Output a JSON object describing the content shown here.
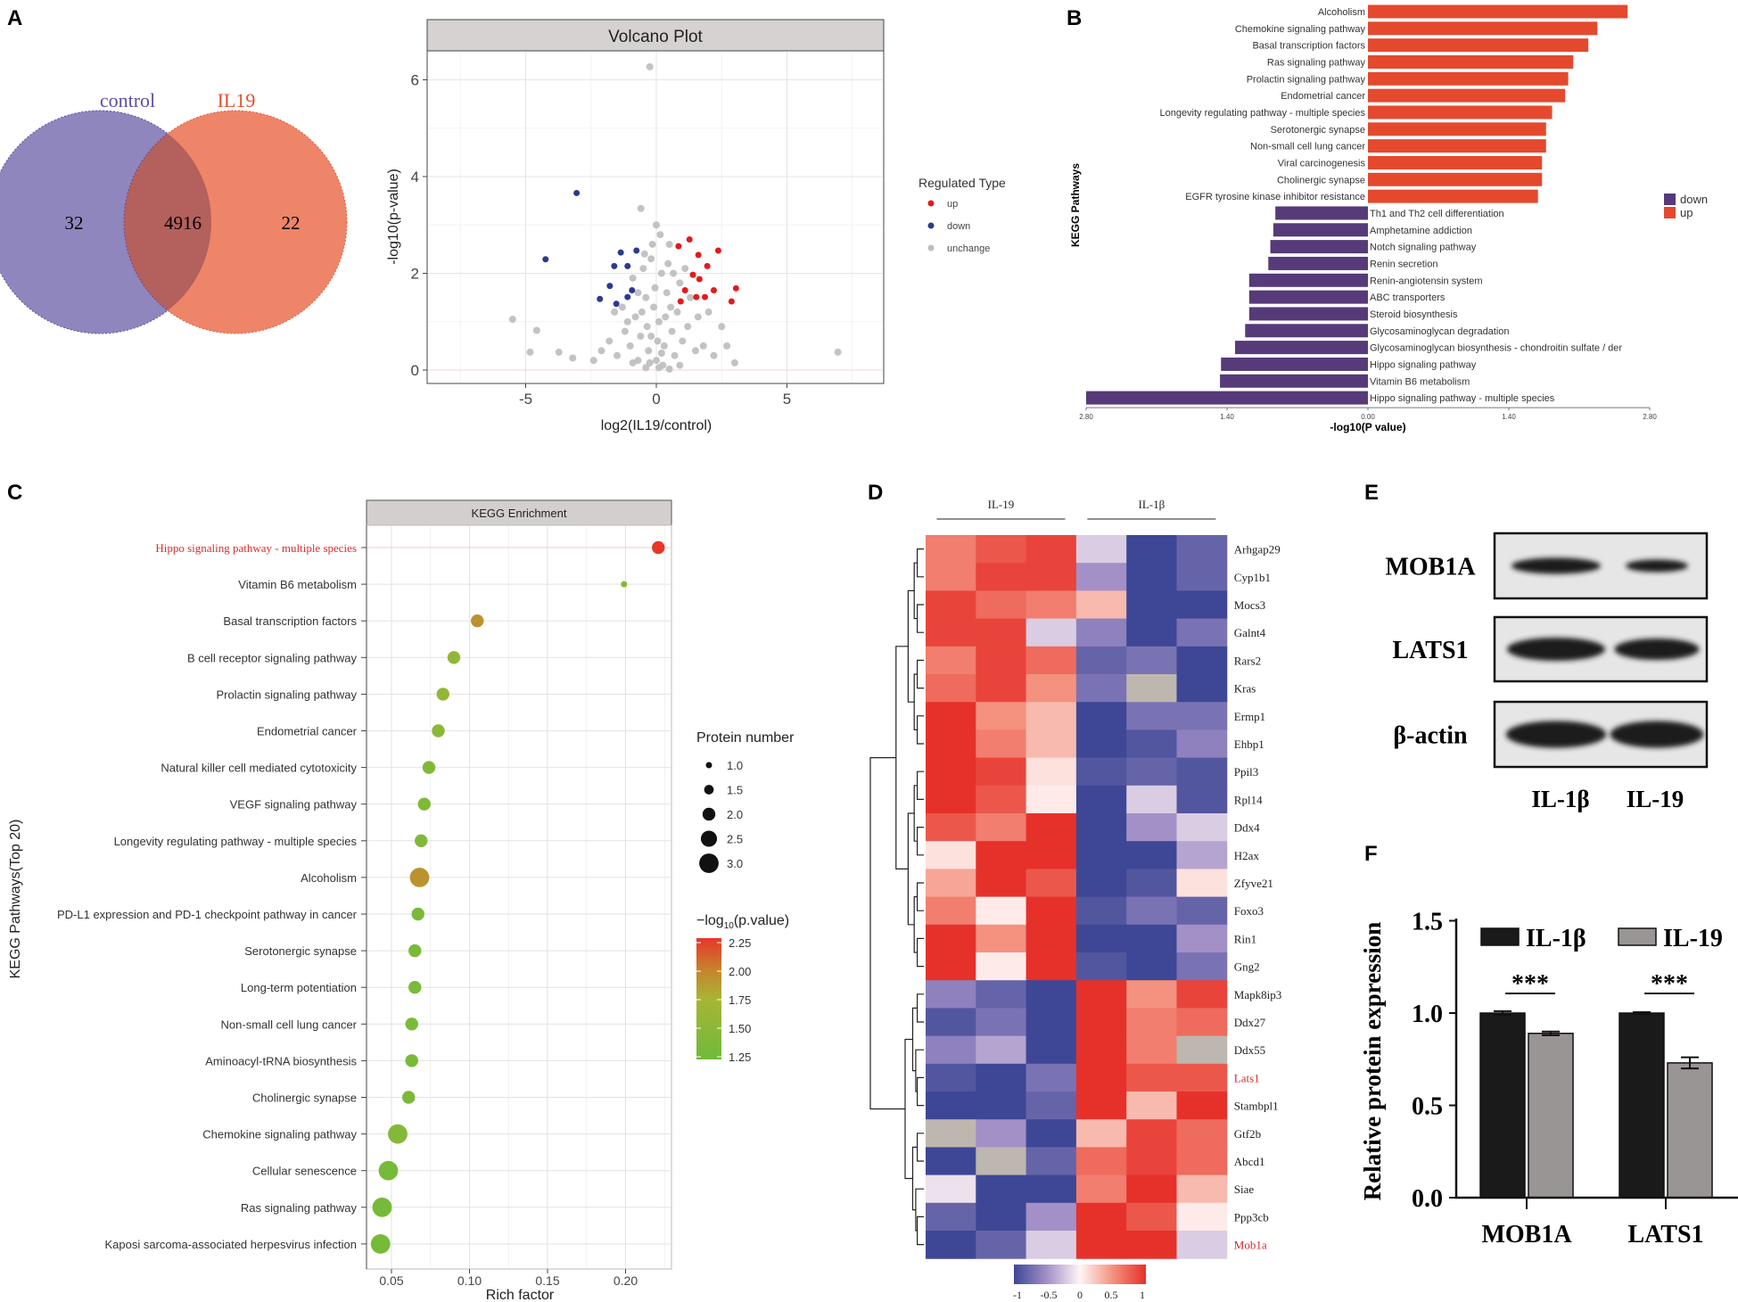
{
  "panel_labels": {
    "a": "A",
    "b": "B",
    "c": "C",
    "d": "D",
    "e": "E",
    "f": "F"
  },
  "chart_data": [
    {
      "type": "venn",
      "sets": [
        {
          "name": "control",
          "only": "32",
          "color": "#8f86bd"
        },
        {
          "name": "IL19",
          "only": "22",
          "color": "#ee8568"
        }
      ],
      "intersection": "4916",
      "overlap_color": "#b4605c"
    },
    {
      "type": "scatter",
      "title": "Volcano Plot",
      "xlabel": "log2(IL19/control)",
      "ylabel": "-log10(p-value)",
      "xticks": [
        "-5",
        "0",
        "5"
      ],
      "yticks": [
        "0",
        "2",
        "4",
        "6"
      ],
      "xlim": [
        -8.8,
        8.8
      ],
      "ylim": [
        -0.3,
        6.6
      ],
      "legend": {
        "title": "Regulated Type",
        "entries": [
          "up",
          "down",
          "unchange"
        ]
      },
      "series": [
        {
          "name": "unchange",
          "color": "#bdbdbd",
          "points": [
            [
              -0.25,
              6.27
            ],
            [
              -0.59,
              3.34
            ],
            [
              -5.5,
              1.05
            ],
            [
              6.95,
              0.37
            ],
            [
              -4.58,
              0.82
            ],
            [
              -4.83,
              0.37
            ],
            [
              -3.73,
              0.37
            ],
            [
              0,
              0.2
            ],
            [
              0.3,
              0.5
            ],
            [
              -0.3,
              0.4
            ],
            [
              0.6,
              0.8
            ],
            [
              -0.6,
              0.7
            ],
            [
              0.1,
              1.0
            ],
            [
              -0.1,
              1.3
            ],
            [
              0.4,
              1.6
            ],
            [
              -0.4,
              1.5
            ],
            [
              0.2,
              2.0
            ],
            [
              -0.2,
              2.3
            ],
            [
              0.5,
              2.6
            ],
            [
              -0.5,
              2.1
            ],
            [
              0.8,
              1.2
            ],
            [
              -0.8,
              1.1
            ],
            [
              1.0,
              0.6
            ],
            [
              -1.0,
              0.5
            ],
            [
              1.2,
              0.9
            ],
            [
              -1.2,
              0.8
            ],
            [
              1.5,
              0.4
            ],
            [
              -1.5,
              0.3
            ],
            [
              0.7,
              0.3
            ],
            [
              -0.7,
              0.2
            ],
            [
              0.9,
              1.8
            ],
            [
              -0.9,
              1.9
            ],
            [
              0.15,
              2.8
            ],
            [
              0.0,
              3.0
            ],
            [
              -0.15,
              2.6
            ],
            [
              0.35,
              1.1
            ],
            [
              -0.35,
              0.9
            ],
            [
              1.8,
              0.5
            ],
            [
              -1.8,
              0.6
            ],
            [
              2.2,
              0.3
            ],
            [
              -2.1,
              0.4
            ],
            [
              2.5,
              0.9
            ],
            [
              0.05,
              0.6
            ],
            [
              -0.05,
              1.7
            ],
            [
              0.25,
              0.1
            ],
            [
              -0.25,
              0.15
            ],
            [
              0.55,
              1.3
            ],
            [
              -0.55,
              1.2
            ],
            [
              1.3,
              1.5
            ],
            [
              -1.3,
              1.3
            ],
            [
              0.45,
              2.2
            ],
            [
              -0.45,
              2.4
            ],
            [
              0.65,
              2.0
            ],
            [
              -0.7,
              1.6
            ],
            [
              1.1,
              2.1
            ],
            [
              -1.1,
              1.0
            ],
            [
              0.9,
              0.1
            ],
            [
              -0.9,
              0.15
            ],
            [
              1.6,
              1.1
            ],
            [
              -1.6,
              1.2
            ],
            [
              0.2,
              0.35
            ],
            [
              -0.2,
              0.7
            ],
            [
              0.1,
              0.05
            ],
            [
              -0.4,
              0.05
            ],
            [
              0.5,
              0.02
            ],
            [
              2.0,
              1.2
            ],
            [
              -2.4,
              0.2
            ],
            [
              3.0,
              0.15
            ],
            [
              -3.2,
              0.25
            ],
            [
              2.7,
              0.5
            ]
          ]
        },
        {
          "name": "up",
          "color": "#e41a1c",
          "points": [
            [
              0.85,
              2.56
            ],
            [
              1.27,
              2.7
            ],
            [
              1.61,
              2.38
            ],
            [
              2.37,
              2.47
            ],
            [
              1.95,
              2.15
            ],
            [
              1.4,
              1.97
            ],
            [
              1.1,
              1.65
            ],
            [
              1.53,
              1.51
            ],
            [
              1.86,
              1.51
            ],
            [
              2.2,
              1.65
            ],
            [
              2.88,
              1.42
            ],
            [
              3.05,
              1.69
            ],
            [
              0.93,
              1.42
            ],
            [
              1.65,
              1.88
            ]
          ]
        },
        {
          "name": "down",
          "color": "#2b3a8f",
          "points": [
            [
              -3.05,
              3.66
            ],
            [
              -4.24,
              2.29
            ],
            [
              -1.61,
              2.15
            ],
            [
              -1.1,
              2.15
            ],
            [
              -0.76,
              2.47
            ],
            [
              -1.36,
              2.43
            ],
            [
              -0.93,
              1.65
            ],
            [
              -1.53,
              1.37
            ],
            [
              -2.16,
              1.47
            ],
            [
              -1.1,
              1.51
            ],
            [
              -1.78,
              1.74
            ]
          ]
        }
      ]
    },
    {
      "type": "bar",
      "orientation": "horizontal-diverging",
      "ylabel": "KEGG Pathways",
      "xlabel": "-log10(P value)",
      "xticks": [
        "2.80",
        "1.40",
        "0.00",
        "1.40",
        "2.80"
      ],
      "xlim": [
        0,
        2.8
      ],
      "legend": [
        {
          "name": "down",
          "color": "#563a79"
        },
        {
          "name": "up",
          "color": "#e4492e"
        }
      ],
      "items": [
        {
          "name": "Alcoholism",
          "dir": "up",
          "value": 2.58
        },
        {
          "name": "Chemokine signaling pathway",
          "dir": "up",
          "value": 2.28
        },
        {
          "name": "Basal transcription factors",
          "dir": "up",
          "value": 2.19
        },
        {
          "name": "Ras signaling pathway",
          "dir": "up",
          "value": 2.04
        },
        {
          "name": "Prolactin signaling pathway",
          "dir": "up",
          "value": 1.99
        },
        {
          "name": "Endometrial cancer",
          "dir": "up",
          "value": 1.96
        },
        {
          "name": "Longevity regulating pathway - multiple species",
          "dir": "up",
          "value": 1.83
        },
        {
          "name": "Serotonergic synapse",
          "dir": "up",
          "value": 1.77
        },
        {
          "name": "Non-small cell lung cancer",
          "dir": "up",
          "value": 1.77
        },
        {
          "name": "Viral carcinogenesis",
          "dir": "up",
          "value": 1.73
        },
        {
          "name": "Cholinergic synapse",
          "dir": "up",
          "value": 1.73
        },
        {
          "name": "EGFR tyrosine kinase inhibitor resistance",
          "dir": "up",
          "value": 1.69
        },
        {
          "name": "Th1 and Th2 cell differentiation",
          "dir": "down",
          "value": 0.92
        },
        {
          "name": "Amphetamine addiction",
          "dir": "down",
          "value": 0.94
        },
        {
          "name": "Notch signaling pathway",
          "dir": "down",
          "value": 0.97
        },
        {
          "name": "Renin secretion",
          "dir": "down",
          "value": 0.99
        },
        {
          "name": "Renin-angiotensin system",
          "dir": "down",
          "value": 1.18
        },
        {
          "name": "ABC transporters",
          "dir": "down",
          "value": 1.18
        },
        {
          "name": "Steroid biosynthesis",
          "dir": "down",
          "value": 1.18
        },
        {
          "name": "Glycosaminoglycan degradation",
          "dir": "down",
          "value": 1.22
        },
        {
          "name": "Glycosaminoglycan biosynthesis - chondroitin sulfate / der",
          "dir": "down",
          "value": 1.32
        },
        {
          "name": "Hippo signaling pathway",
          "dir": "down",
          "value": 1.46
        },
        {
          "name": "Vitamin B6 metabolism",
          "dir": "down",
          "value": 1.47
        },
        {
          "name": "Hippo signaling pathway - multiple species",
          "dir": "down",
          "value": 2.8
        }
      ]
    },
    {
      "type": "scatter",
      "subtype": "bubble",
      "title": "KEGG Enrichment",
      "xlabel": "Rich factor",
      "ylabel": "KEGG Pathways(Top 20)",
      "xticks": [
        "0.05",
        "0.10",
        "0.15",
        "0.20"
      ],
      "xlim": [
        0.034,
        0.23
      ],
      "size_legend": {
        "title": "Protein number",
        "values": [
          "1.0",
          "1.5",
          "2.0",
          "2.5",
          "3.0"
        ]
      },
      "color_legend": {
        "title_main": "−log",
        "title_sub": "10",
        "title_tail": "(p.value)",
        "values": [
          "2.25",
          "2.00",
          "1.75",
          "1.50",
          "1.25"
        ]
      },
      "highlight_color": "#e02b2b",
      "items": [
        {
          "name": "Hippo signaling pathway - multiple species",
          "rich": 0.221,
          "count": 2,
          "logp": 2.3,
          "highlight": true
        },
        {
          "name": "Vitamin B6 metabolism",
          "rich": 0.199,
          "count": 1,
          "logp": 1.47
        },
        {
          "name": "Basal transcription factors",
          "rich": 0.105,
          "count": 2,
          "logp": 1.95
        },
        {
          "name": "B cell receptor signaling pathway",
          "rich": 0.09,
          "count": 2,
          "logp": 1.55
        },
        {
          "name": "Prolactin signaling pathway",
          "rich": 0.083,
          "count": 2,
          "logp": 1.55
        },
        {
          "name": "Endometrial cancer",
          "rich": 0.08,
          "count": 2,
          "logp": 1.5
        },
        {
          "name": "Natural killer cell mediated cytotoxicity",
          "rich": 0.074,
          "count": 2,
          "logp": 1.4
        },
        {
          "name": "VEGF signaling pathway",
          "rich": 0.071,
          "count": 2,
          "logp": 1.4
        },
        {
          "name": "Longevity regulating pathway - multiple species",
          "rich": 0.069,
          "count": 2,
          "logp": 1.4
        },
        {
          "name": "Alcoholism",
          "rich": 0.068,
          "count": 3,
          "logp": 1.95
        },
        {
          "name": "PD-L1 expression and PD-1 checkpoint pathway in cancer",
          "rich": 0.067,
          "count": 2,
          "logp": 1.35
        },
        {
          "name": "Serotonergic synapse",
          "rich": 0.065,
          "count": 2,
          "logp": 1.35
        },
        {
          "name": "Long-term potentiation",
          "rich": 0.065,
          "count": 2,
          "logp": 1.35
        },
        {
          "name": "Non-small cell lung cancer",
          "rich": 0.063,
          "count": 2,
          "logp": 1.35
        },
        {
          "name": "Aminoacyl-tRNA biosynthesis",
          "rich": 0.063,
          "count": 2,
          "logp": 1.35
        },
        {
          "name": "Cholinergic synapse",
          "rich": 0.061,
          "count": 2,
          "logp": 1.35
        },
        {
          "name": "Chemokine signaling pathway",
          "rich": 0.054,
          "count": 3,
          "logp": 1.45
        },
        {
          "name": "Cellular senescence",
          "rich": 0.048,
          "count": 3,
          "logp": 1.3
        },
        {
          "name": "Ras signaling pathway",
          "rich": 0.044,
          "count": 3,
          "logp": 1.3
        },
        {
          "name": "Kaposi sarcoma-associated herpesvirus infection",
          "rich": 0.043,
          "count": 3,
          "logp": 1.3
        }
      ]
    },
    {
      "type": "heatmap",
      "groups": [
        "IL-19",
        "IL-1β"
      ],
      "colorbar_ticks": [
        "-1",
        "-0.5",
        "0",
        "0.5",
        "1"
      ],
      "highlight_rows": [
        "Lats1",
        "Mob1a"
      ],
      "highlight_color": "#d42a2a",
      "rows": [
        "Arhgap29",
        "Cyp1b1",
        "Mocs3",
        "Galnt4",
        "Rars2",
        "Kras",
        "Ermp1",
        "Ehbp1",
        "Ppil3",
        "Rpl14",
        "Ddx4",
        "H2ax",
        "Zfyve21",
        "Foxo3",
        "Rin1",
        "Gng2",
        "Mapk8ip3",
        "Ddx27",
        "Ddx55",
        "Lats1",
        "Stambpl1",
        "Gtf2b",
        "Abcd1",
        "Siae",
        "Ppp3cb",
        "Mob1a"
      ],
      "values": [
        [
          0.6,
          0.8,
          0.9,
          -0.2,
          -1,
          -0.8
        ],
        [
          0.6,
          0.9,
          0.9,
          -0.5,
          -1,
          -0.8
        ],
        [
          0.9,
          0.7,
          0.6,
          0.3,
          -1,
          -1
        ],
        [
          0.9,
          0.9,
          -0.2,
          -0.6,
          -1,
          -0.7
        ],
        [
          0.6,
          0.9,
          0.7,
          -0.8,
          -0.7,
          -1
        ],
        [
          0.7,
          0.9,
          0.5,
          -0.7,
          null,
          -1
        ],
        [
          1,
          0.5,
          0.3,
          -1,
          -0.7,
          -0.7
        ],
        [
          1,
          0.6,
          0.3,
          -1,
          -0.9,
          -0.6
        ],
        [
          1,
          0.9,
          0.1,
          -0.9,
          -0.8,
          -0.9
        ],
        [
          1,
          0.8,
          0.05,
          -1,
          -0.2,
          -0.9
        ],
        [
          0.8,
          0.6,
          1,
          -1,
          -0.5,
          -0.2
        ],
        [
          0.1,
          1,
          1,
          -1,
          -1,
          -0.4
        ],
        [
          0.4,
          1,
          0.8,
          -1,
          -0.9,
          0.1
        ],
        [
          0.6,
          0.05,
          1,
          -0.9,
          -0.7,
          -0.8
        ],
        [
          1,
          0.5,
          1,
          -1,
          -1,
          -0.5
        ],
        [
          1,
          0.05,
          1,
          -0.9,
          -1,
          -0.7
        ],
        [
          -0.6,
          -0.8,
          -1,
          1,
          0.5,
          0.9
        ],
        [
          -0.9,
          -0.7,
          -1,
          1,
          0.6,
          0.7
        ],
        [
          -0.6,
          -0.4,
          -1,
          1,
          0.6,
          null
        ],
        [
          -0.9,
          -1,
          -0.7,
          1,
          0.8,
          0.8
        ],
        [
          -1,
          -1,
          -0.8,
          1,
          0.3,
          1
        ],
        [
          null,
          -0.5,
          -1,
          0.3,
          0.9,
          0.7
        ],
        [
          -1,
          null,
          -0.8,
          0.7,
          0.9,
          0.7
        ],
        [
          -0.1,
          -1,
          -1,
          0.6,
          1,
          0.3
        ],
        [
          -0.8,
          -1,
          -0.5,
          1,
          0.8,
          0.05
        ],
        [
          -1,
          -0.8,
          -0.2,
          1,
          1,
          -0.2
        ]
      ]
    },
    {
      "type": "western-blot",
      "proteins": [
        "MOB1A",
        "LATS1",
        "β-actin"
      ],
      "lanes": [
        "IL-1β",
        "IL-19"
      ]
    },
    {
      "type": "bar",
      "ylabel": "Relative protein expression",
      "yticks": [
        "0.0",
        "0.5",
        "1.0",
        "1.5"
      ],
      "ylim": [
        0,
        1.5
      ],
      "categories": [
        "MOB1A",
        "LATS1"
      ],
      "significance": [
        "***",
        "***"
      ],
      "series": [
        {
          "name": "IL-1β",
          "color": "#1a1a1a",
          "values": [
            1.0,
            1.0
          ],
          "errors": [
            0.01,
            0.005
          ]
        },
        {
          "name": "IL-19",
          "color": "#9a9595",
          "values": [
            0.89,
            0.73
          ],
          "errors": [
            0.01,
            0.03
          ]
        }
      ]
    }
  ]
}
